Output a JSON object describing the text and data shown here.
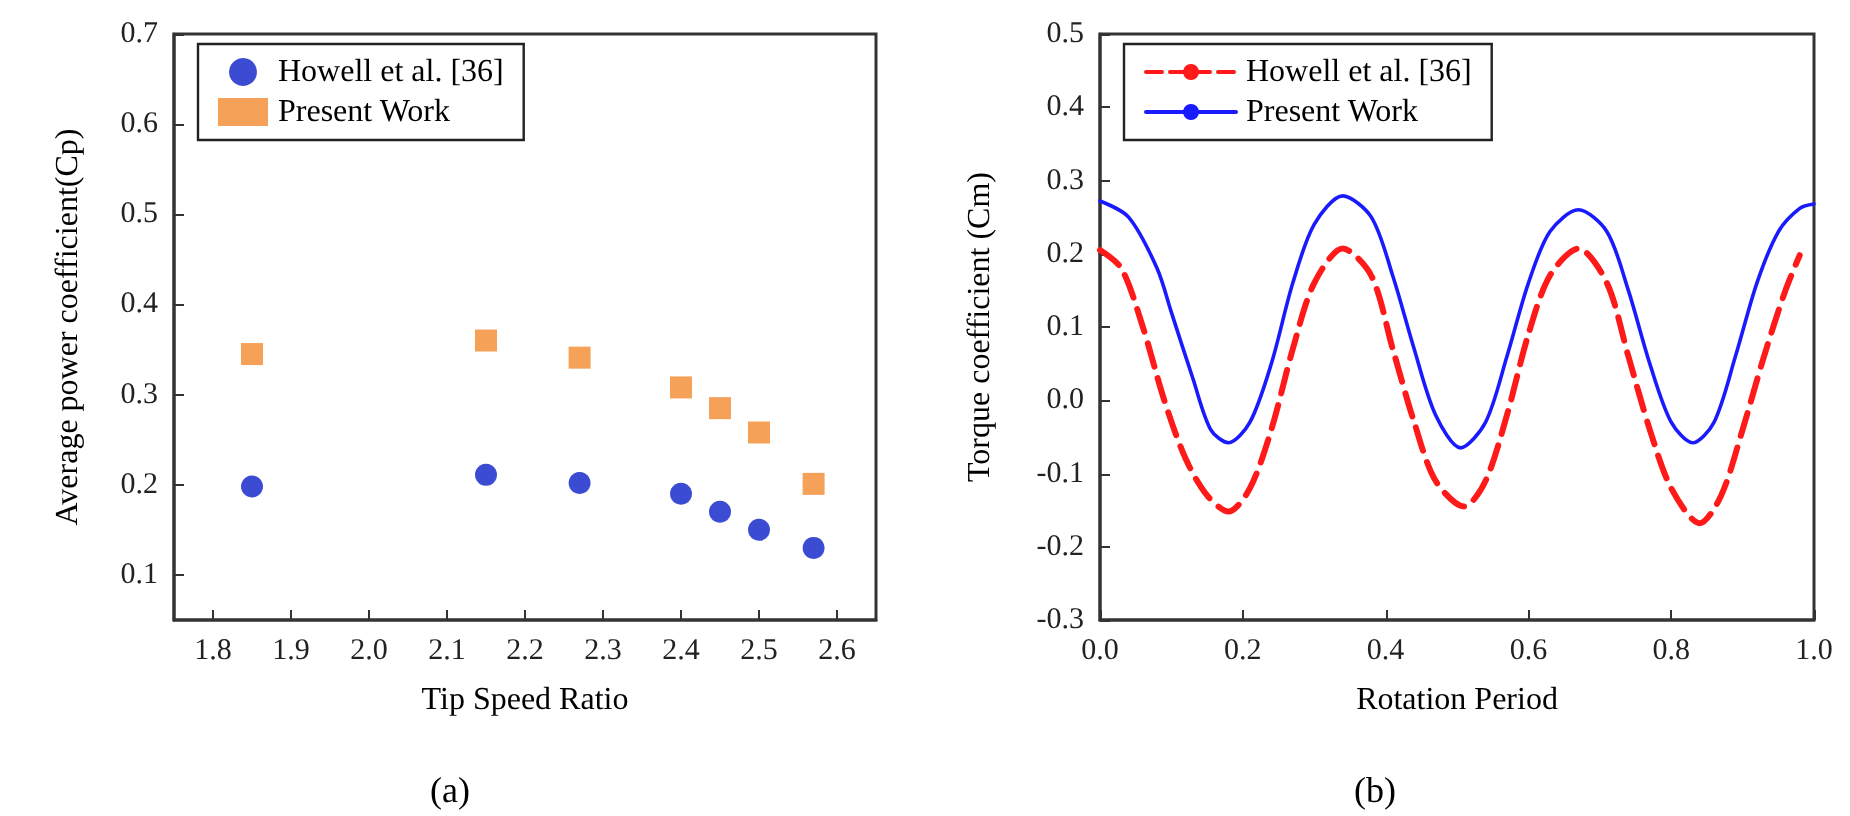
{
  "chart_data": [
    {
      "type": "scatter",
      "xlabel": "Tip Speed Ratio",
      "ylabel": "Average power coefficient(Cp)",
      "annotations": [
        "(a)"
      ],
      "xlim": [
        1.75,
        2.65
      ],
      "xticks": [
        1.8,
        1.9,
        {
          "value": 2,
          "label": "2.0"
        },
        2.1,
        2.2,
        2.3,
        2.4,
        2.5,
        2.6
      ],
      "ylim": [
        0.05,
        0.7
      ],
      "yticks": [
        0.1,
        0.2,
        0.3,
        0.4,
        0.5,
        0.6,
        0.7
      ],
      "grid": false,
      "legend": "top left",
      "x": [
        1.85,
        2.15,
        2.27,
        2.4,
        2.45,
        2.5,
        2.57
      ],
      "series": [
        {
          "name": "Howell et al. [36]",
          "color": "#0a1fc8",
          "marker": "circle",
          "values": [
            0.198,
            0.211,
            0.202,
            0.19,
            0.17,
            0.15,
            0.13
          ]
        },
        {
          "name": "Present Work",
          "color": "#f28a2e",
          "marker": "square",
          "values": [
            0.345,
            0.36,
            0.341,
            0.308,
            0.285,
            0.258,
            0.201
          ]
        }
      ]
    },
    {
      "type": "line",
      "xlabel": "Rotation Period",
      "ylabel": "Torque coefficient (Cm)",
      "annotations": [
        "(b)"
      ],
      "xlim": [
        0,
        1
      ],
      "xticks": [
        {
          "value": 0,
          "label": "0.0"
        },
        0.2,
        0.4,
        0.6,
        0.8,
        {
          "value": 1,
          "label": "1.0"
        }
      ],
      "ylim": [
        -0.3,
        0.5
      ],
      "yticks": [
        -0.3,
        -0.2,
        -0.1,
        {
          "value": 0,
          "label": "0.0"
        },
        0.1,
        0.2,
        0.3,
        0.4,
        0.5
      ],
      "grid": false,
      "legend": "top left",
      "marker": "none",
      "series": [
        {
          "name": "Howell et al. [36]",
          "color": "#ff1a1a",
          "line_style": "dashed",
          "x": [
            0,
            0.03,
            0.06,
            0.09,
            0.12,
            0.15,
            0.18,
            0.21,
            0.24,
            0.27,
            0.3,
            0.34,
            0.38,
            0.41,
            0.44,
            0.47,
            0.51,
            0.54,
            0.57,
            0.6,
            0.63,
            0.67,
            0.71,
            0.74,
            0.77,
            0.8,
            0.84,
            0.87,
            0.9,
            0.93,
            0.96,
            0.98
          ],
          "values": [
            0.205,
            0.18,
            0.1,
            0.0,
            -0.08,
            -0.13,
            -0.152,
            -0.12,
            -0.04,
            0.07,
            0.16,
            0.207,
            0.17,
            0.07,
            -0.03,
            -0.11,
            -0.145,
            -0.11,
            -0.02,
            0.09,
            0.17,
            0.207,
            0.16,
            0.06,
            -0.04,
            -0.12,
            -0.168,
            -0.13,
            -0.04,
            0.06,
            0.15,
            0.198
          ]
        },
        {
          "name": "Present Work",
          "color": "#1a1aff",
          "line_style": "solid",
          "x": [
            0,
            0.04,
            0.08,
            0.1,
            0.13,
            0.155,
            0.18,
            0.21,
            0.24,
            0.27,
            0.3,
            0.34,
            0.38,
            0.41,
            0.44,
            0.47,
            0.505,
            0.54,
            0.57,
            0.6,
            0.63,
            0.67,
            0.71,
            0.74,
            0.77,
            0.8,
            0.83,
            0.86,
            0.89,
            0.92,
            0.95,
            0.98,
            1.0
          ],
          "values": [
            0.272,
            0.25,
            0.18,
            0.12,
            0.03,
            -0.04,
            -0.058,
            -0.03,
            0.05,
            0.16,
            0.24,
            0.279,
            0.25,
            0.17,
            0.07,
            -0.02,
            -0.065,
            -0.03,
            0.06,
            0.16,
            0.23,
            0.26,
            0.23,
            0.15,
            0.05,
            -0.03,
            -0.058,
            -0.03,
            0.06,
            0.16,
            0.23,
            0.262,
            0.268
          ]
        }
      ]
    }
  ]
}
